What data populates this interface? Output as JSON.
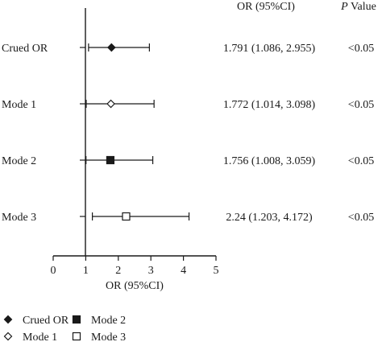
{
  "chart_data": {
    "type": "forest",
    "xlabel": "OR (95%CI)",
    "xlim": [
      0,
      5
    ],
    "x_ticks": [
      0,
      1,
      2,
      3,
      4,
      5
    ],
    "reference_line": 1,
    "header": {
      "or_column": "OR (95%CI)",
      "p_column_italic": "P",
      "p_column_rest": " Value"
    },
    "rows": [
      {
        "label": "Crued OR",
        "or": 1.791,
        "lower": 1.086,
        "upper": 2.955,
        "or_text": "1.791 (1.086, 2.955)",
        "p_text": "<0.05",
        "marker": "filled-diamond"
      },
      {
        "label": "Mode 1",
        "or": 1.772,
        "lower": 1.014,
        "upper": 3.098,
        "or_text": "1.772 (1.014, 3.098)",
        "p_text": "<0.05",
        "marker": "open-diamond"
      },
      {
        "label": "Mode 2",
        "or": 1.756,
        "lower": 1.008,
        "upper": 3.059,
        "or_text": "1.756 (1.008, 3.059)",
        "p_text": "<0.05",
        "marker": "filled-square"
      },
      {
        "label": "Mode 3",
        "or": 2.24,
        "lower": 1.203,
        "upper": 4.172,
        "or_text": "2.24 (1.203, 4.172)",
        "p_text": "<0.05",
        "marker": "open-square"
      }
    ],
    "legend": [
      {
        "label": "Crued OR",
        "marker": "filled-diamond"
      },
      {
        "label": "Mode 2",
        "marker": "filled-square"
      },
      {
        "label": "Mode 1",
        "marker": "open-diamond"
      },
      {
        "label": "Mode 3",
        "marker": "open-square"
      }
    ],
    "legend_placement": "bottom-left",
    "grid": false,
    "colors": {
      "ink": "#1a1a1a",
      "background": "#ffffff"
    }
  }
}
